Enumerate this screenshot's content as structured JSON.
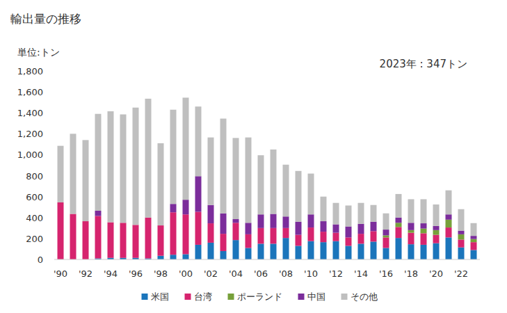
{
  "chart_data": {
    "type": "bar",
    "stacked": true,
    "title": "輸出量の推移",
    "y_label": "単位:トン",
    "annotations": [
      {
        "text": "2023年 : 347トン"
      }
    ],
    "categories": [
      "'90",
      null,
      "'92",
      null,
      "'94",
      null,
      "'96",
      null,
      "'98",
      null,
      "'00",
      null,
      "'02",
      null,
      "'04",
      null,
      "'06",
      null,
      "'08",
      null,
      "'10",
      null,
      "'12",
      null,
      "'14",
      null,
      "'16",
      null,
      "'18",
      null,
      "'20",
      null,
      "'22",
      null
    ],
    "series": [
      {
        "name": "米国",
        "color": "#1b75bb",
        "values": [
          0,
          0,
          0,
          10,
          15,
          15,
          15,
          10,
          35,
          45,
          50,
          140,
          160,
          80,
          185,
          110,
          150,
          150,
          205,
          130,
          175,
          165,
          175,
          130,
          150,
          170,
          110,
          205,
          145,
          140,
          155,
          210,
          115,
          90
        ]
      },
      {
        "name": "台湾",
        "color": "#d6246e",
        "values": [
          545,
          435,
          365,
          405,
          340,
          335,
          315,
          390,
          290,
          405,
          380,
          315,
          185,
          165,
          165,
          130,
          150,
          150,
          95,
          105,
          130,
          100,
          80,
          80,
          95,
          100,
          100,
          105,
          110,
          110,
          80,
          95,
          75,
          75
        ]
      },
      {
        "name": "ポーランド",
        "color": "#77a03a",
        "values": [
          0,
          0,
          0,
          0,
          0,
          0,
          0,
          0,
          0,
          0,
          0,
          0,
          0,
          0,
          0,
          0,
          0,
          0,
          0,
          0,
          0,
          0,
          0,
          0,
          0,
          0,
          20,
          40,
          25,
          45,
          45,
          75,
          50,
          30
        ]
      },
      {
        "name": "中国",
        "color": "#7b2d9b",
        "values": [
          0,
          0,
          0,
          50,
          0,
          0,
          0,
          0,
          0,
          80,
          140,
          340,
          175,
          195,
          35,
          110,
          130,
          135,
          110,
          125,
          125,
          100,
          80,
          105,
          95,
          90,
          55,
          50,
          70,
          50,
          40,
          50,
          35,
          30
        ]
      },
      {
        "name": "その他",
        "color": "#bfbfbf",
        "values": [
          540,
          765,
          775,
          925,
          1060,
          1035,
          1120,
          1135,
          785,
          900,
          975,
          665,
          645,
          905,
          775,
          815,
          565,
          615,
          495,
          485,
          390,
          235,
          205,
          200,
          200,
          160,
          155,
          225,
          225,
          230,
          205,
          230,
          205,
          122
        ]
      }
    ],
    "ylim": [
      0,
      1800
    ],
    "yticks": [
      0,
      200,
      400,
      600,
      800,
      {
        "value": 1000,
        "label": "1,000"
      },
      {
        "value": 1200,
        "label": "1,200"
      },
      {
        "value": 1400,
        "label": "1,400"
      },
      {
        "value": 1600,
        "label": "1,600"
      },
      {
        "value": 1800,
        "label": "1,800"
      }
    ],
    "grid": false,
    "legend": "bottom"
  }
}
